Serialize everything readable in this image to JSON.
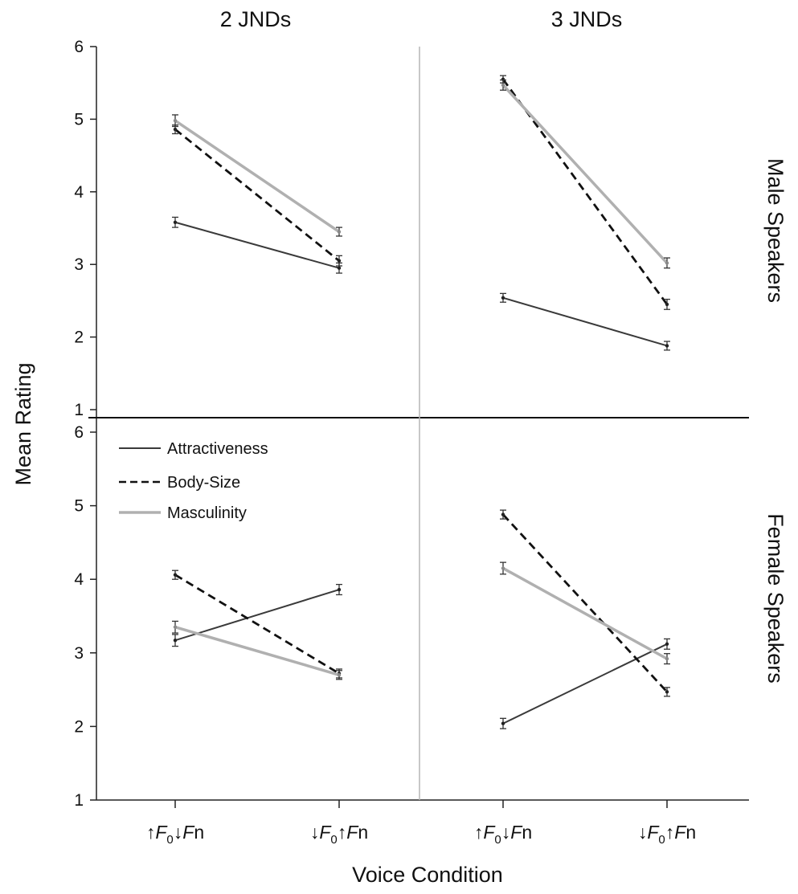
{
  "chart_data": {
    "type": "line",
    "column_titles": [
      "2 JNDs",
      "3 JNDs"
    ],
    "row_labels": [
      "Male Speakers",
      "Female Speakers"
    ],
    "ylabel": "Mean Rating",
    "xlabel": "Voice Condition",
    "categories": [
      "↑F0↓Fn",
      "↓F0↑Fn"
    ],
    "ylim": [
      1,
      6
    ],
    "yticks": [
      1,
      2,
      3,
      4,
      5,
      6
    ],
    "legend": {
      "placement": "top-left",
      "entries": [
        "Attractiveness",
        "Body-Size",
        "Masculinity"
      ]
    },
    "series_styles": {
      "Attractiveness": {
        "color": "#3a3a3a",
        "dash": "solid"
      },
      "Body-Size": {
        "color": "#111111",
        "dash": "dashed"
      },
      "Masculinity": {
        "color": "#b0b0b0",
        "dash": "solid"
      }
    },
    "panels": [
      {
        "row": "Male Speakers",
        "column": "2 JNDs",
        "series": [
          {
            "name": "Attractiveness",
            "values": [
              3.58,
              2.95
            ],
            "error": [
              0.07,
              0.07
            ]
          },
          {
            "name": "Body-Size",
            "values": [
              4.86,
              3.05
            ],
            "error": [
              0.06,
              0.07
            ]
          },
          {
            "name": "Masculinity",
            "values": [
              4.98,
              3.45
            ],
            "error": [
              0.08,
              0.06
            ]
          }
        ]
      },
      {
        "row": "Male Speakers",
        "column": "3 JNDs",
        "series": [
          {
            "name": "Attractiveness",
            "values": [
              2.54,
              1.88
            ],
            "error": [
              0.06,
              0.06
            ]
          },
          {
            "name": "Body-Size",
            "values": [
              5.55,
              2.45
            ],
            "error": [
              0.05,
              0.07
            ]
          },
          {
            "name": "Masculinity",
            "values": [
              5.47,
              3.02
            ],
            "error": [
              0.07,
              0.07
            ]
          }
        ]
      },
      {
        "row": "Female Speakers",
        "column": "2 JNDs",
        "series": [
          {
            "name": "Attractiveness",
            "values": [
              3.17,
              3.86
            ],
            "error": [
              0.08,
              0.07
            ]
          },
          {
            "name": "Body-Size",
            "values": [
              4.06,
              2.72
            ],
            "error": [
              0.06,
              0.06
            ]
          },
          {
            "name": "Masculinity",
            "values": [
              3.35,
              2.7
            ],
            "error": [
              0.08,
              0.06
            ]
          }
        ]
      },
      {
        "row": "Female Speakers",
        "column": "3 JNDs",
        "series": [
          {
            "name": "Attractiveness",
            "values": [
              2.04,
              3.12
            ],
            "error": [
              0.07,
              0.07
            ]
          },
          {
            "name": "Body-Size",
            "values": [
              4.88,
              2.47
            ],
            "error": [
              0.06,
              0.06
            ]
          },
          {
            "name": "Masculinity",
            "values": [
              4.15,
              2.92
            ],
            "error": [
              0.08,
              0.07
            ]
          }
        ]
      }
    ]
  }
}
